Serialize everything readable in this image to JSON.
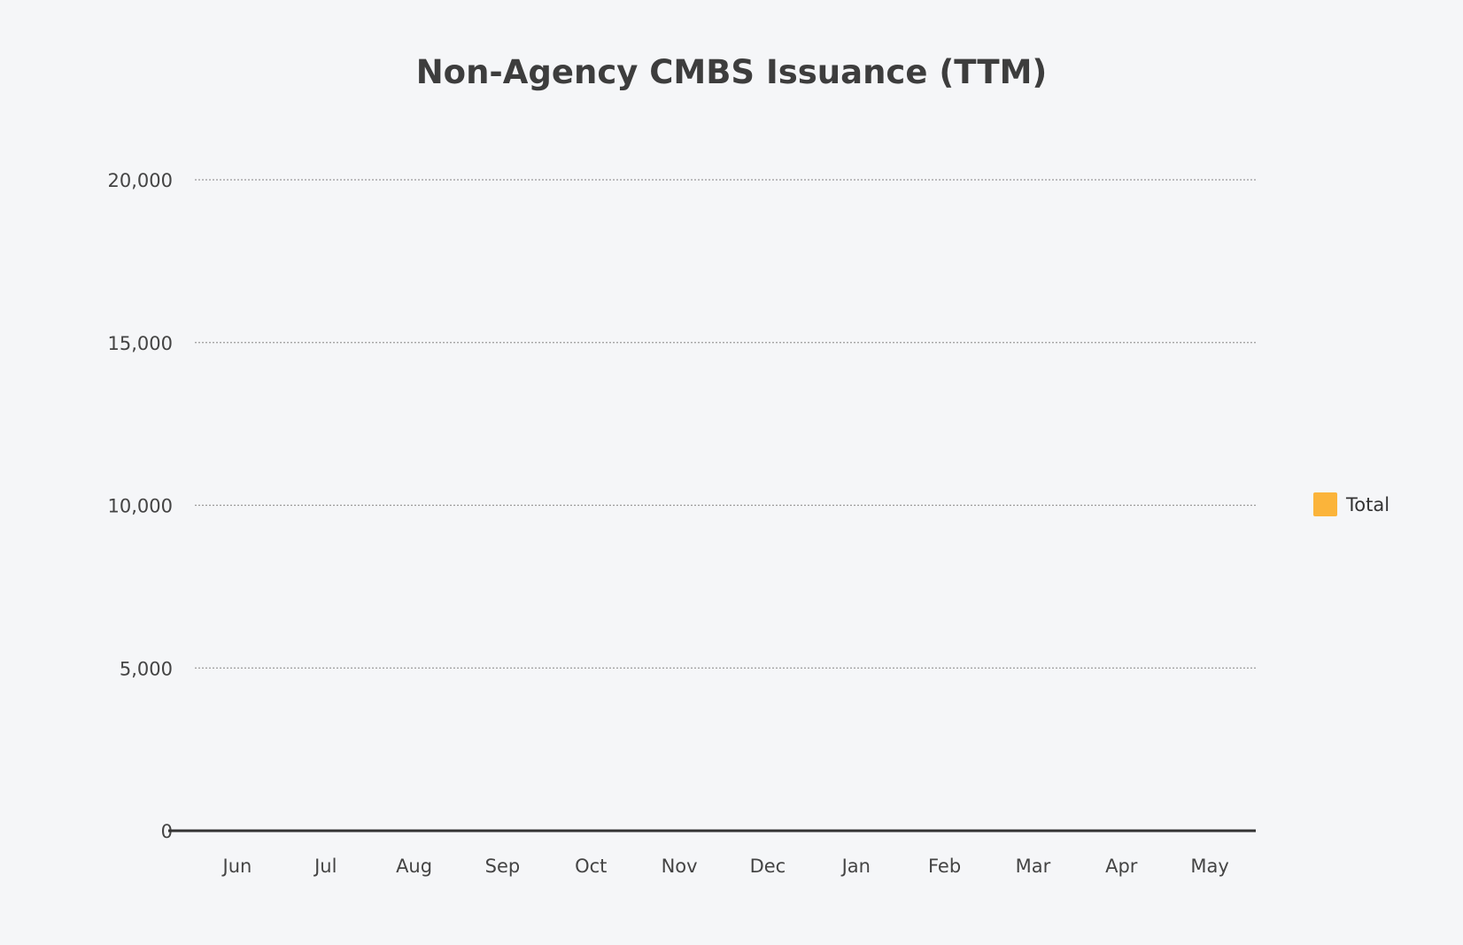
{
  "chart_data": {
    "type": "bar",
    "title": "Non-Agency CMBS Issuance (TTM)",
    "categories": [
      "Jun",
      "Jul",
      "Aug",
      "Sep",
      "Oct",
      "Nov",
      "Dec",
      "Jan",
      "Feb",
      "Mar",
      "Apr",
      "May"
    ],
    "series": [
      {
        "name": "Total",
        "color": "#fbb43a",
        "values": [
          0,
          0,
          0,
          0,
          0,
          0,
          0,
          0,
          0,
          0,
          0,
          0
        ]
      }
    ],
    "yticks": [
      "0",
      "5,000",
      "10,000",
      "15,000",
      "20,000"
    ],
    "ylim": [
      0,
      20000
    ],
    "grid": true,
    "legend_position": "right",
    "xlabel": "",
    "ylabel": ""
  }
}
